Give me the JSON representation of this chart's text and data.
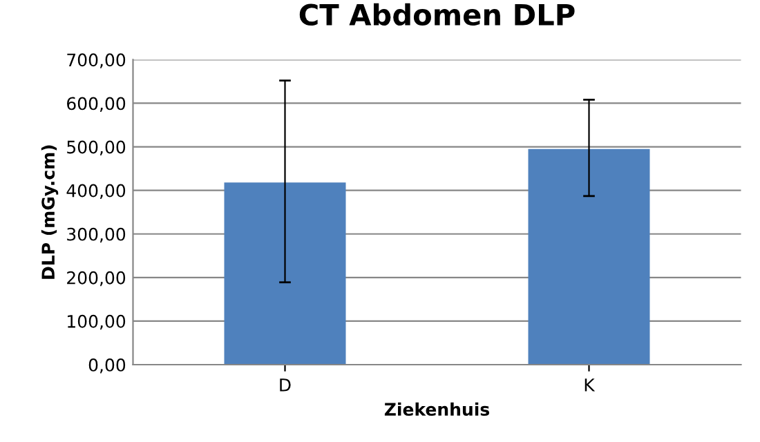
{
  "chart_data": {
    "type": "bar",
    "title": "CT Abdomen DLP",
    "xlabel": "Ziekenhuis",
    "ylabel": "DLP (mGy.cm)",
    "categories": [
      "D",
      "K"
    ],
    "values": [
      418,
      495
    ],
    "color": "#4f81bd",
    "errors": [
      [
        189,
        652
      ],
      [
        387,
        608
      ]
    ],
    "ylim": [
      0,
      700
    ],
    "yticks": [
      {
        "value": 0,
        "label": "0,00"
      },
      {
        "value": 100,
        "label": "100,00"
      },
      {
        "value": 200,
        "label": "200,00"
      },
      {
        "value": 300,
        "label": "300,00"
      },
      {
        "value": 400,
        "label": "400,00"
      },
      {
        "value": 500,
        "label": "500,00"
      },
      {
        "value": 600,
        "label": "600,00"
      },
      {
        "value": 700,
        "label": "700,00"
      }
    ],
    "grid": "y"
  }
}
